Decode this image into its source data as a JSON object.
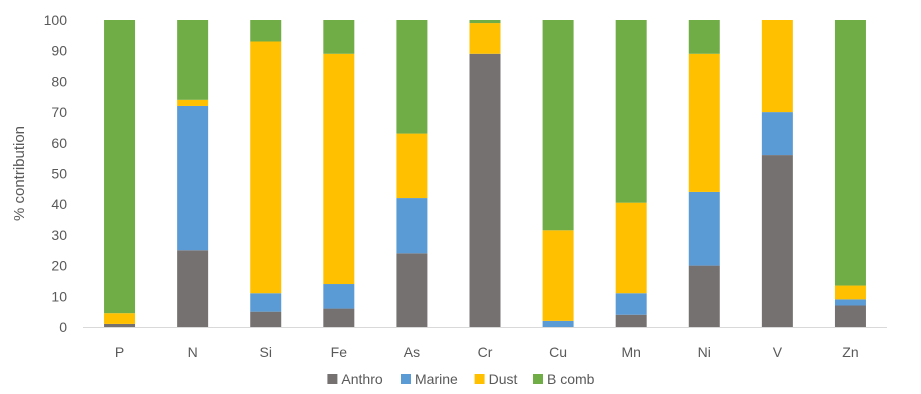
{
  "chart_data": {
    "type": "bar",
    "stacked": true,
    "percent_stacked": true,
    "categories": [
      "P",
      "N",
      "Si",
      "Fe",
      "As",
      "Cr",
      "Cu",
      "Mn",
      "Ni",
      "V",
      "Zn"
    ],
    "series": [
      {
        "name": "Anthro",
        "color": "#767171",
        "values": [
          1,
          25,
          5,
          6,
          24,
          89,
          0,
          4,
          20,
          56,
          7
        ]
      },
      {
        "name": "Marine",
        "color": "#5B9BD5",
        "values": [
          0,
          47,
          6,
          8,
          18,
          0,
          2,
          7,
          24,
          14,
          2
        ]
      },
      {
        "name": "Dust",
        "color": "#FFC000",
        "values": [
          3.5,
          2,
          82,
          75,
          21,
          10,
          29.5,
          29.5,
          45,
          30,
          4.5
        ]
      },
      {
        "name": "B comb",
        "color": "#70AD47",
        "values": [
          95.5,
          26,
          7,
          11,
          37,
          1,
          68.5,
          59.5,
          11,
          0,
          86.5
        ]
      }
    ],
    "title": "",
    "xlabel": "",
    "ylabel": "% contribution",
    "ylim": [
      0,
      100
    ],
    "yticks": [
      0,
      10,
      20,
      30,
      40,
      50,
      60,
      70,
      80,
      90,
      100
    ],
    "grid": false,
    "legend_position": "bottom"
  }
}
